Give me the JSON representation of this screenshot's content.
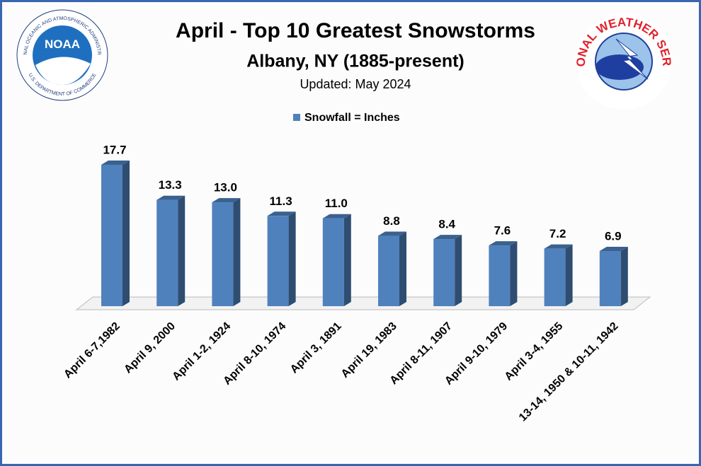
{
  "chart_data": {
    "type": "bar3d",
    "title": "April - Top 10 Greatest Snowstorms",
    "subtitle": "Albany, NY (1885-present)",
    "note": "Updated: May 2024",
    "categories": [
      "April 6-7,1982",
      "April 9, 2000",
      "April 1-2, 1924",
      "April 8-10, 1974",
      "April 3, 1891",
      "April 19, 1983",
      "April 8-11, 1907",
      "April 9-10, 1979",
      "April 3-4, 1955",
      "13-14, 1950 & 10-11, 1942"
    ],
    "series": [
      {
        "name": "Snowfall = Inches",
        "color": "#4f81bd",
        "values": [
          17.7,
          13.3,
          13.0,
          11.3,
          11.0,
          8.8,
          8.4,
          7.6,
          7.2,
          6.9
        ],
        "value_labels": [
          "17.7",
          "13.3",
          "13.0",
          "11.3",
          "11.0",
          "8.8",
          "8.4",
          "7.6",
          "7.2",
          "6.9"
        ]
      }
    ],
    "legend": "top"
  },
  "logos": {
    "noaa": {
      "name": "NOAA",
      "ring_top": "NATIONAL OCEANIC AND ATMOSPHERIC ADMINISTRATION",
      "ring_bottom": "U.S. DEPARTMENT OF COMMERCE"
    },
    "nws": {
      "ring": "NATIONAL WEATHER SERVICE"
    }
  }
}
